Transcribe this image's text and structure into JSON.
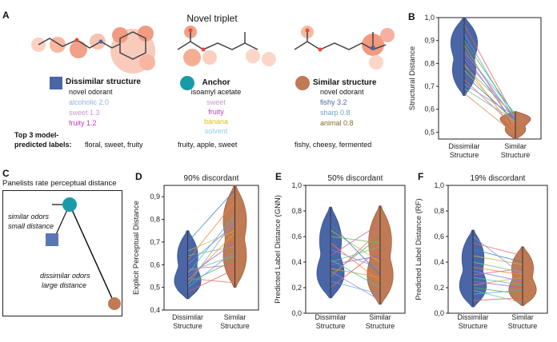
{
  "panel_a": {
    "letter": "A",
    "title": "Novel triplet",
    "dissimilar": {
      "heading": "Dissimilar structure",
      "subtitle": "novel odorant",
      "labels": [
        {
          "text": "alcoholic 2.0",
          "color": "#8fb3dd"
        },
        {
          "text": "sweet 1.3",
          "color": "#c799cc"
        },
        {
          "text": "fruity 1.2",
          "color": "#c23bb0"
        }
      ],
      "swatch_color": "#4a66a6"
    },
    "anchor": {
      "heading": "Anchor",
      "subtitle": "isoamyl acetate",
      "labels": [
        {
          "text": "sweet",
          "color": "#c799cc"
        },
        {
          "text": "fruity",
          "color": "#c23bb0"
        },
        {
          "text": "banana",
          "color": "#e0c020"
        },
        {
          "text": "solvent",
          "color": "#8fd0e8"
        }
      ],
      "swatch_color": "#1a9aa8"
    },
    "similar": {
      "heading": "Similar structure",
      "subtitle": "novel odorant",
      "labels": [
        {
          "text": "fishy 3.2",
          "color": "#4a66a6"
        },
        {
          "text": "sharp 0.8",
          "color": "#6fa4c8"
        },
        {
          "text": "animal 0.8",
          "color": "#8a6a2a"
        }
      ],
      "swatch_color": "#c07a54"
    },
    "top3_label_line1": "Top 3 model-",
    "top3_label_line2": "predicted labels:",
    "top3": [
      "floral, sweet, fruity",
      "fruity, apple, sweet",
      "fishy, cheesy, fermented"
    ]
  },
  "panel_c": {
    "letter": "C",
    "title": "Panelists rate perceptual distance",
    "similar_note_1": "similar odors",
    "similar_note_2": "small distance",
    "dissimilar_note_1": "dissimilar odors",
    "dissimilar_note_2": "large distance"
  },
  "charts": {
    "B": {
      "letter": "B",
      "title": "",
      "ylabel": "Structural Distance",
      "yticks": [
        "0,5",
        "0,6",
        "0,7",
        "0,8",
        "0,9",
        "1,0"
      ],
      "xlabels": [
        [
          "Dissimilar",
          "Structure"
        ],
        [
          "Similar",
          "Structure"
        ]
      ]
    },
    "D": {
      "letter": "D",
      "title": "90% discordant",
      "ylabel": "Explicit Perceptual Distance",
      "yticks": [
        "0,4",
        "0,5",
        "0,6",
        "0,7",
        "0,8",
        "0,9"
      ],
      "xlabels": [
        [
          "Dissimilar",
          "Structure"
        ],
        [
          "Similar",
          "Structure"
        ]
      ]
    },
    "E": {
      "letter": "E",
      "title": "50% discordant",
      "ylabel": "Predicted Label Distance (GNN)",
      "yticks": [
        "0,0",
        "0,2",
        "0,4",
        "0,6",
        "0,8",
        "1,0"
      ],
      "xlabels": [
        [
          "Dissimilar",
          "Structure"
        ],
        [
          "Similar",
          "Structure"
        ]
      ]
    },
    "F": {
      "letter": "F",
      "title": "19% discordant",
      "ylabel": "Predicted Label Distance (RF)",
      "yticks": [
        "0,0",
        "0,2",
        "0,4",
        "0,6",
        "0,8",
        "1,0"
      ],
      "xlabels": [
        [
          "Dissimilar",
          "Structure"
        ],
        [
          "Similar",
          "Structure"
        ]
      ]
    }
  },
  "chart_data": [
    {
      "type": "scatter",
      "panel": "B",
      "title": "",
      "xlabel": "",
      "ylabel": "Structural Distance",
      "categories": [
        "Dissimilar Structure",
        "Similar Structure"
      ],
      "ylim": [
        0.47,
        1.0
      ],
      "colors": {
        "dissimilar": "#4a66a6",
        "similar": "#c07a54"
      },
      "series": [
        {
          "name": "Dissimilar Structure",
          "range": [
            0.66,
            1.0
          ],
          "median": 0.84
        },
        {
          "name": "Similar Structure",
          "range": [
            0.47,
            0.59
          ],
          "median": 0.55
        }
      ],
      "pairs": [
        [
          0.97,
          0.56
        ],
        [
          0.93,
          0.55
        ],
        [
          0.9,
          0.57
        ],
        [
          0.88,
          0.52
        ],
        [
          0.86,
          0.55
        ],
        [
          0.85,
          0.58
        ],
        [
          0.84,
          0.53
        ],
        [
          0.82,
          0.56
        ],
        [
          0.8,
          0.5
        ],
        [
          0.79,
          0.57
        ],
        [
          0.77,
          0.54
        ],
        [
          0.75,
          0.55
        ],
        [
          0.73,
          0.52
        ],
        [
          0.71,
          0.57
        ],
        [
          0.69,
          0.55
        ],
        [
          0.67,
          0.49
        ]
      ]
    },
    {
      "type": "scatter",
      "panel": "D",
      "title": "90% discordant",
      "xlabel": "",
      "ylabel": "Explicit Perceptual Distance",
      "categories": [
        "Dissimilar Structure",
        "Similar Structure"
      ],
      "ylim": [
        0.4,
        0.95
      ],
      "series": [
        {
          "name": "Dissimilar Structure",
          "range": [
            0.45,
            0.75
          ],
          "median": 0.55
        },
        {
          "name": "Similar Structure",
          "range": [
            0.5,
            0.95
          ],
          "median": 0.71
        }
      ],
      "pairs": [
        [
          0.48,
          0.58
        ],
        [
          0.5,
          0.66
        ],
        [
          0.52,
          0.62
        ],
        [
          0.53,
          0.74
        ],
        [
          0.55,
          0.7
        ],
        [
          0.56,
          0.82
        ],
        [
          0.58,
          0.6
        ],
        [
          0.6,
          0.78
        ],
        [
          0.62,
          0.88
        ],
        [
          0.64,
          0.68
        ],
        [
          0.66,
          0.75
        ],
        [
          0.7,
          0.93
        ],
        [
          0.54,
          0.52
        ],
        [
          0.51,
          0.8
        ],
        [
          0.57,
          0.64
        ]
      ]
    },
    {
      "type": "scatter",
      "panel": "E",
      "title": "50% discordant",
      "xlabel": "",
      "ylabel": "Predicted Label Distance (GNN)",
      "categories": [
        "Dissimilar Structure",
        "Similar Structure"
      ],
      "ylim": [
        0.0,
        1.0
      ],
      "series": [
        {
          "name": "Dissimilar Structure",
          "range": [
            0.12,
            0.83
          ],
          "median": 0.37
        },
        {
          "name": "Similar Structure",
          "range": [
            0.07,
            0.84
          ],
          "median": 0.38
        }
      ],
      "pairs": [
        [
          0.2,
          0.5
        ],
        [
          0.25,
          0.15
        ],
        [
          0.3,
          0.6
        ],
        [
          0.35,
          0.28
        ],
        [
          0.38,
          0.45
        ],
        [
          0.42,
          0.2
        ],
        [
          0.45,
          0.7
        ],
        [
          0.5,
          0.35
        ],
        [
          0.55,
          0.25
        ],
        [
          0.6,
          0.55
        ],
        [
          0.65,
          0.4
        ],
        [
          0.7,
          0.3
        ],
        [
          0.28,
          0.65
        ],
        [
          0.33,
          0.1
        ],
        [
          0.4,
          0.52
        ]
      ]
    },
    {
      "type": "scatter",
      "panel": "F",
      "title": "19% discordant",
      "xlabel": "",
      "ylabel": "Predicted Label Distance (RF)",
      "categories": [
        "Dissimilar Structure",
        "Similar Structure"
      ],
      "ylim": [
        0.0,
        1.0
      ],
      "series": [
        {
          "name": "Dissimilar Structure",
          "range": [
            0.05,
            0.65
          ],
          "median": 0.27
        },
        {
          "name": "Similar Structure",
          "range": [
            0.06,
            0.52
          ],
          "median": 0.22
        }
      ],
      "pairs": [
        [
          0.1,
          0.12
        ],
        [
          0.15,
          0.18
        ],
        [
          0.2,
          0.15
        ],
        [
          0.22,
          0.28
        ],
        [
          0.25,
          0.2
        ],
        [
          0.28,
          0.22
        ],
        [
          0.3,
          0.35
        ],
        [
          0.33,
          0.25
        ],
        [
          0.36,
          0.3
        ],
        [
          0.4,
          0.32
        ],
        [
          0.45,
          0.38
        ],
        [
          0.5,
          0.4
        ],
        [
          0.55,
          0.45
        ],
        [
          0.6,
          0.3
        ],
        [
          0.18,
          0.08
        ]
      ]
    }
  ]
}
